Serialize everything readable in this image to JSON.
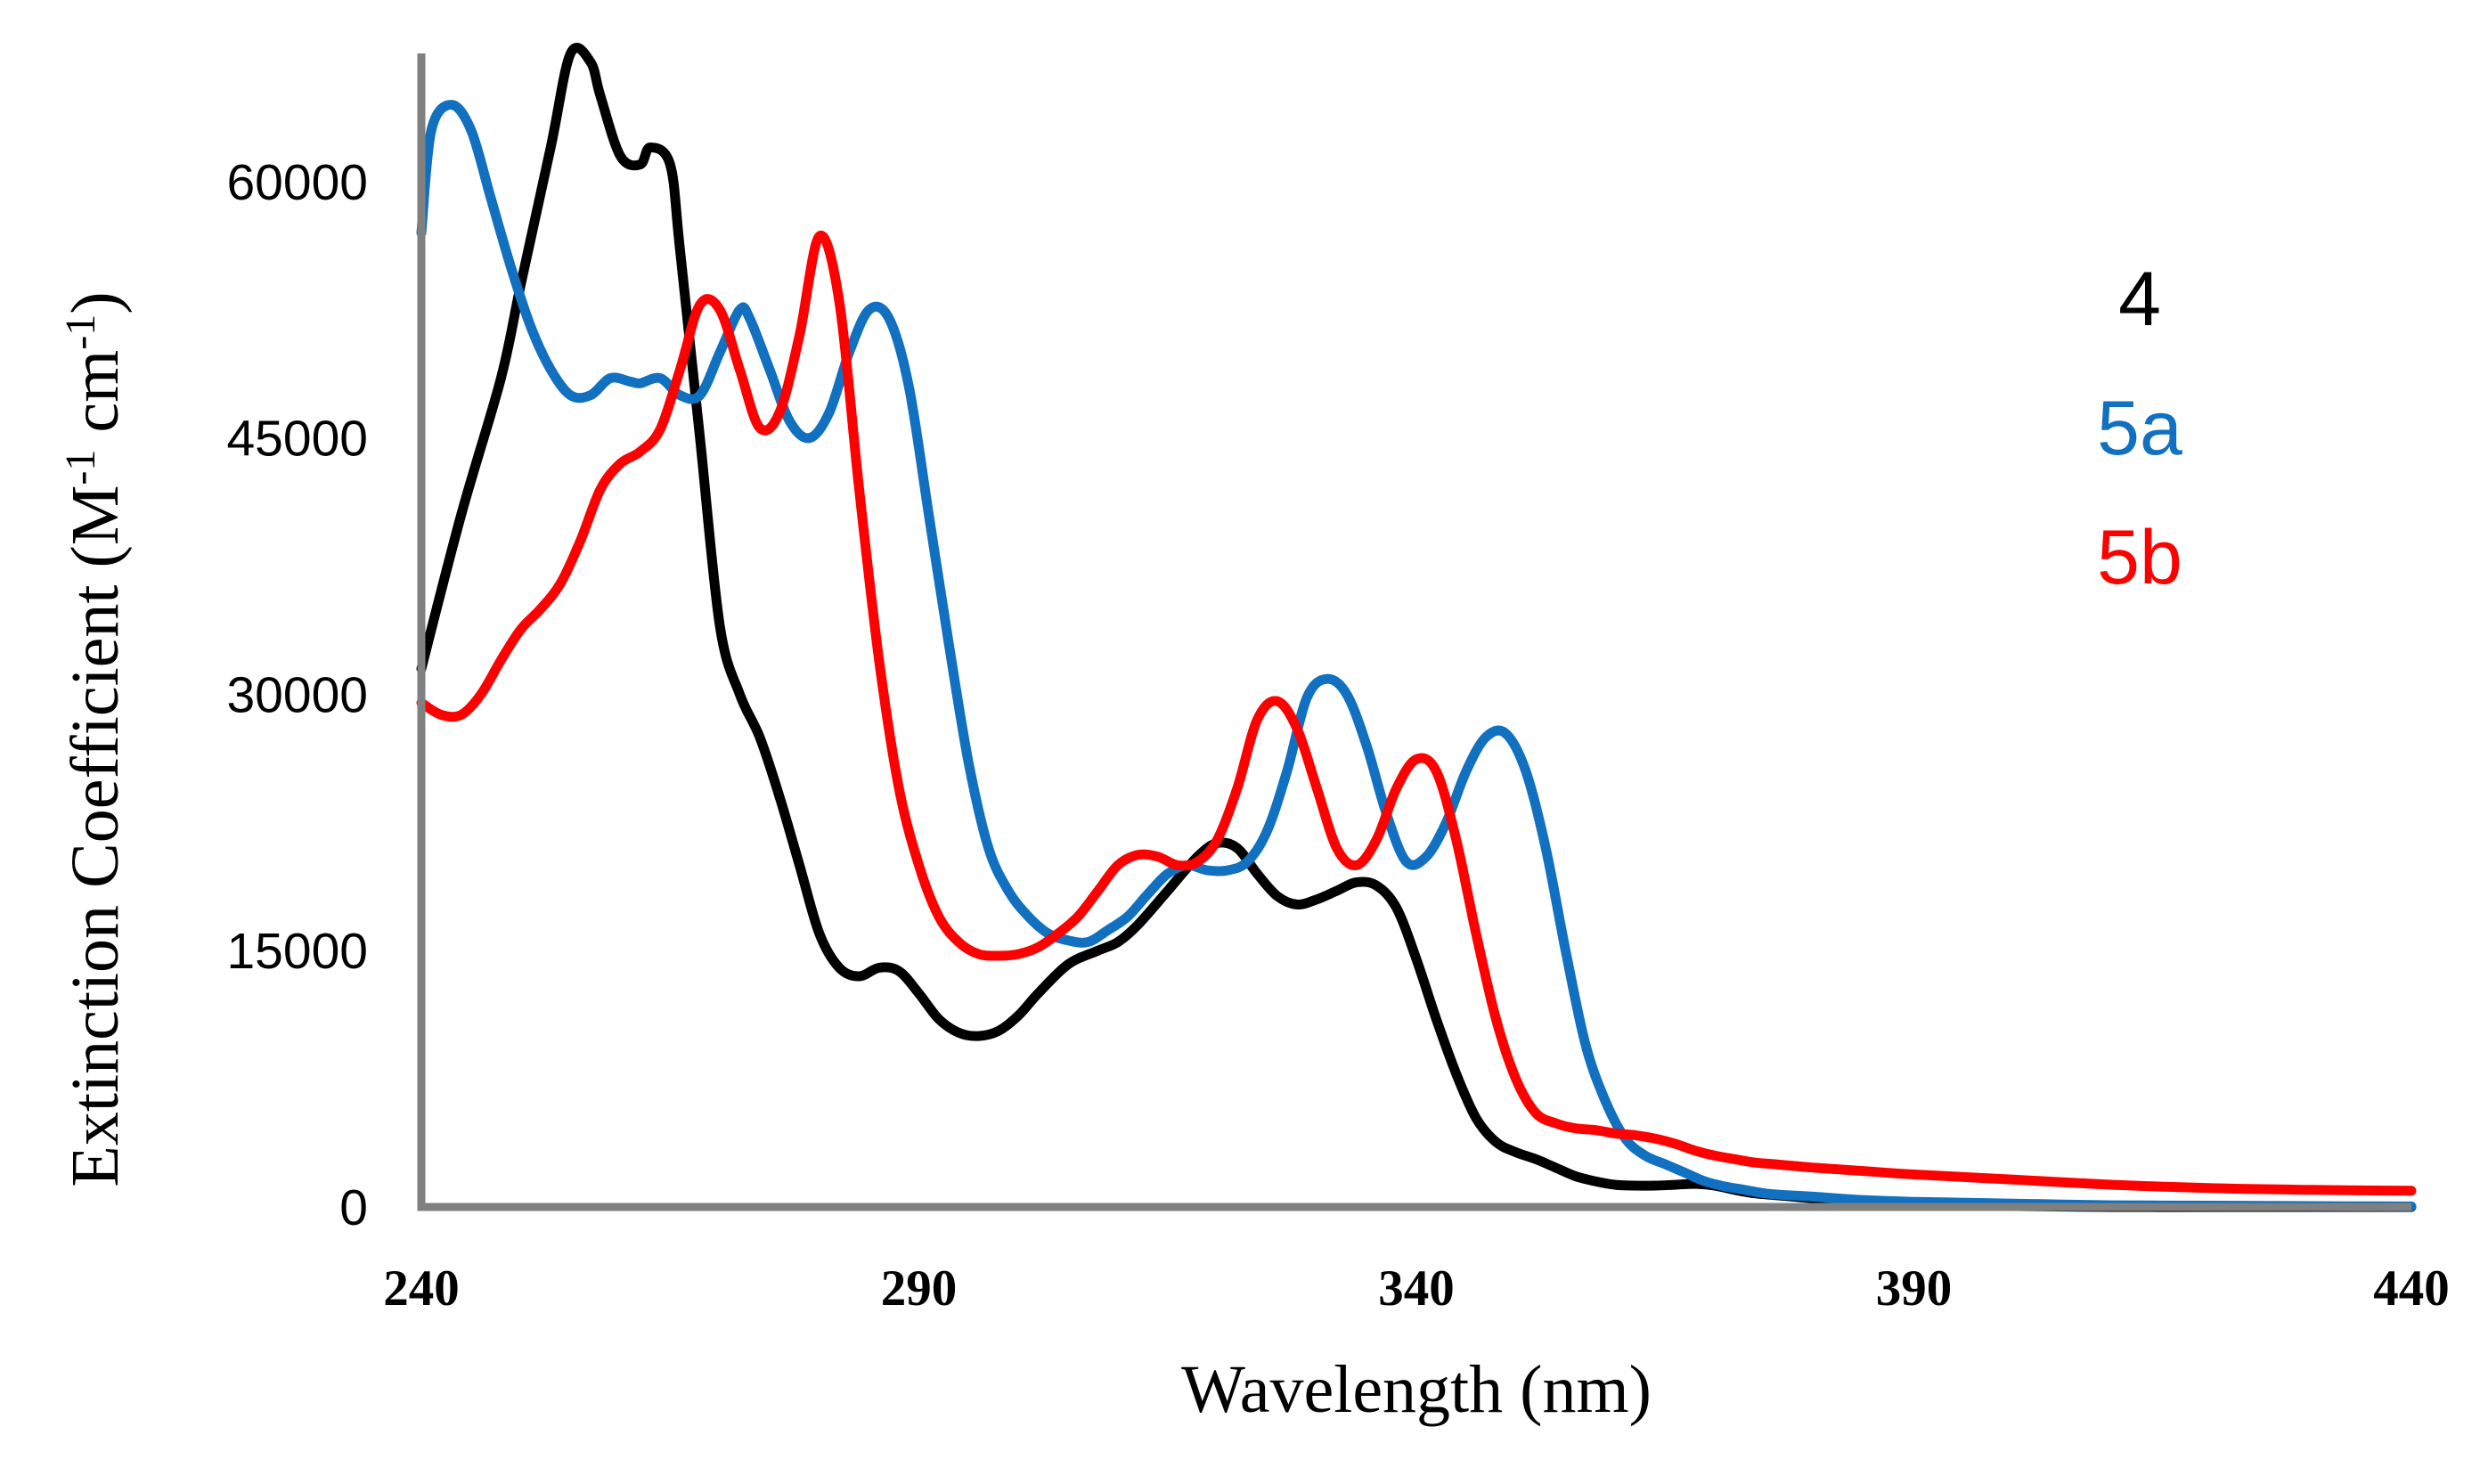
{
  "chart_data": {
    "type": "line",
    "title": "",
    "xlabel": "Wavelength (nm)",
    "ylabel_main": "Extinction Coefficient (M",
    "ylabel_sup1": "-1",
    "ylabel_mid": " cm",
    "ylabel_sup2": "-1",
    "ylabel_end": ")",
    "xlim": [
      240,
      440
    ],
    "ylim": [
      0,
      67500
    ],
    "x_ticks": [
      240,
      290,
      340,
      390,
      440
    ],
    "y_ticks": [
      0,
      15000,
      30000,
      45000,
      60000
    ],
    "x_tick_labels": [
      "240",
      "290",
      "340",
      "390",
      "440"
    ],
    "y_tick_labels": [
      "0",
      "15000",
      "30000",
      "45000",
      "60000"
    ],
    "legend_position": "right",
    "series": [
      {
        "name": "4",
        "color": "#000000",
        "x": [
          240,
          244,
          248,
          250,
          253,
          255,
          257,
          258,
          260,
          262,
          263,
          265,
          266,
          268,
          270,
          272,
          274,
          276,
          278,
          280,
          282,
          284,
          286,
          288,
          290,
          292,
          294,
          296,
          298,
          300,
          302,
          305,
          308,
          310,
          312,
          315,
          318,
          320,
          322,
          324,
          326,
          328,
          330,
          332,
          334,
          336,
          338,
          340,
          342,
          344,
          346,
          348,
          350,
          352,
          354,
          356,
          358,
          360,
          362,
          364,
          366,
          368,
          370,
          372,
          374,
          376,
          378,
          380,
          385,
          390,
          395,
          400,
          410,
          420,
          430,
          440
        ],
        "values": [
          31500,
          40500,
          48500,
          54000,
          62000,
          67500,
          67000,
          65000,
          61500,
          61000,
          62000,
          61000,
          56000,
          45000,
          34000,
          30000,
          27500,
          24000,
          20000,
          16000,
          14000,
          13500,
          14000,
          13800,
          12500,
          11000,
          10200,
          10000,
          10300,
          11200,
          12500,
          14200,
          15000,
          15500,
          16500,
          18500,
          20500,
          21300,
          21000,
          19500,
          18200,
          17700,
          18000,
          18500,
          19000,
          18800,
          17500,
          14500,
          11000,
          7800,
          5200,
          3800,
          3200,
          2800,
          2300,
          1800,
          1500,
          1300,
          1250,
          1250,
          1300,
          1350,
          1250,
          1000,
          800,
          700,
          600,
          500,
          300,
          200,
          100,
          50,
          0,
          0,
          0,
          0
        ]
      },
      {
        "name": "5a",
        "color": "#1170BF",
        "x": [
          240,
          241,
          243,
          245,
          247,
          249,
          251,
          253,
          255,
          257,
          259,
          261,
          262,
          264,
          266,
          268,
          270,
          272,
          273,
          275,
          277,
          279,
          281,
          283,
          285,
          287,
          289,
          291,
          293,
          295,
          297,
          299,
          301,
          303,
          305,
          307,
          309,
          311,
          313,
          315,
          317,
          319,
          321,
          323,
          325,
          327,
          329,
          331,
          333,
          335,
          337,
          339,
          341,
          343,
          345,
          347,
          349,
          351,
          353,
          355,
          357,
          359,
          361,
          363,
          365,
          367,
          369,
          371,
          373,
          375,
          377,
          380,
          385,
          390,
          400,
          410,
          420,
          430,
          440
        ],
        "values": [
          57000,
          63000,
          64500,
          63000,
          59000,
          55000,
          51500,
          49000,
          47500,
          47500,
          48500,
          48300,
          48200,
          48500,
          47500,
          47500,
          50000,
          52500,
          52000,
          49000,
          46000,
          45000,
          46500,
          50000,
          52500,
          52000,
          48000,
          40500,
          33000,
          26000,
          21000,
          18500,
          17000,
          16000,
          15600,
          15500,
          16200,
          17000,
          18300,
          19500,
          20000,
          19700,
          19700,
          20200,
          22000,
          25500,
          29800,
          30900,
          30000,
          27000,
          23000,
          20200,
          20500,
          22500,
          25500,
          27500,
          27700,
          25500,
          21000,
          15000,
          9500,
          6200,
          4000,
          3000,
          2500,
          2000,
          1500,
          1200,
          1000,
          800,
          700,
          600,
          400,
          300,
          200,
          100,
          80,
          50,
          30
        ]
      },
      {
        "name": "5b",
        "color": "#FF0000",
        "x": [
          240,
          242,
          244,
          246,
          248,
          250,
          252,
          254,
          256,
          258,
          260,
          262,
          264,
          266,
          268,
          270,
          272,
          274,
          276,
          278,
          280,
          282,
          284,
          286,
          288,
          290,
          292,
          294,
          296,
          298,
          300,
          302,
          304,
          306,
          308,
          310,
          312,
          314,
          316,
          318,
          320,
          322,
          324,
          326,
          328,
          330,
          332,
          334,
          336,
          338,
          340,
          342,
          344,
          346,
          348,
          350,
          352,
          354,
          356,
          358,
          360,
          362,
          364,
          366,
          368,
          370,
          372,
          374,
          376,
          378,
          380,
          385,
          390,
          400,
          410,
          420,
          430,
          440
        ],
        "values": [
          29500,
          28800,
          28800,
          30000,
          32000,
          33800,
          35000,
          36500,
          39000,
          42000,
          43500,
          44200,
          45500,
          49000,
          52800,
          52500,
          49000,
          45600,
          46500,
          51000,
          56800,
          53000,
          42000,
          32000,
          24500,
          20000,
          17000,
          15500,
          14800,
          14700,
          14800,
          15200,
          16000,
          17000,
          18500,
          20000,
          20600,
          20500,
          20000,
          20200,
          21500,
          24500,
          28500,
          29600,
          28000,
          24500,
          21000,
          20000,
          21500,
          24500,
          26200,
          25500,
          21500,
          16000,
          11000,
          7500,
          5500,
          4900,
          4600,
          4500,
          4300,
          4200,
          4000,
          3700,
          3300,
          3000,
          2800,
          2600,
          2500,
          2400,
          2300,
          2100,
          1900,
          1600,
          1300,
          1100,
          1000,
          950
        ]
      }
    ]
  }
}
